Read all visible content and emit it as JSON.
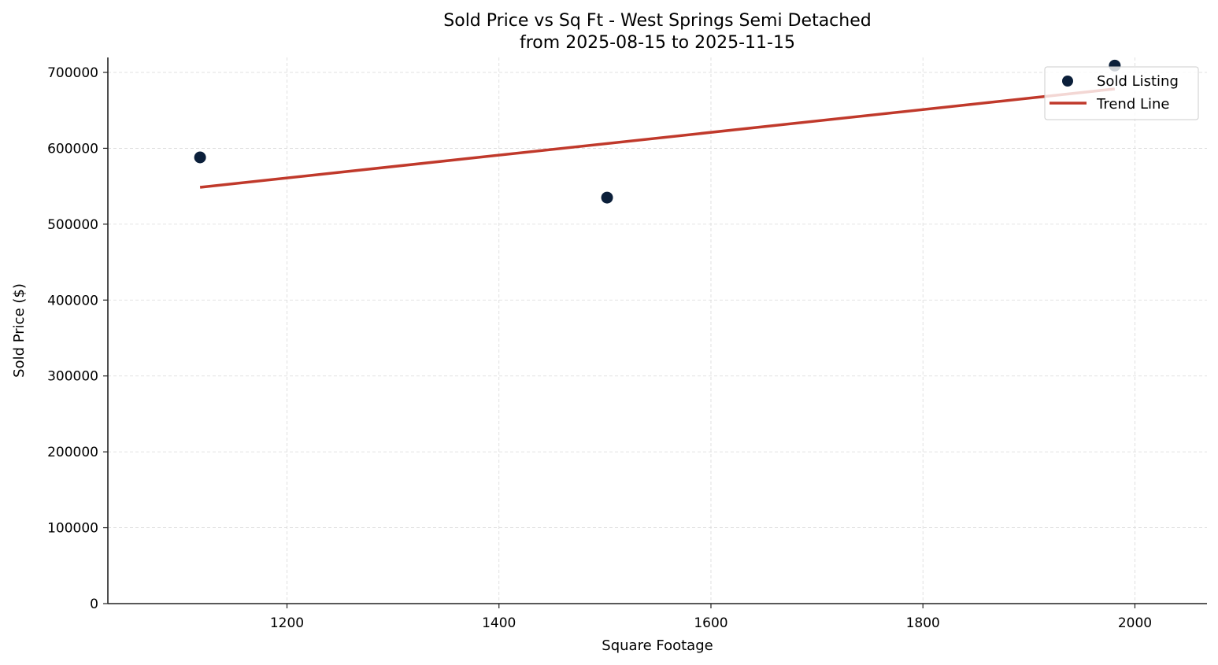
{
  "chart_data": {
    "type": "scatter",
    "title": "Sold Price vs Sq Ft - West Springs Semi Detached",
    "subtitle": "from 2025-08-15 to 2025-11-15",
    "xlabel": "Square Footage",
    "ylabel": "Sold Price ($)",
    "xlim": [
      1031,
      2068
    ],
    "ylim": [
      0,
      719700
    ],
    "xticks": [
      1200,
      1400,
      1600,
      1800,
      2000
    ],
    "yticks": [
      0,
      100000,
      200000,
      300000,
      400000,
      500000,
      600000,
      700000
    ],
    "grid": true,
    "legend_position": "upper right",
    "series": [
      {
        "name": "Sold Listing",
        "type": "scatter",
        "color": "#0b1f3a",
        "points": [
          {
            "x": 1118,
            "y": 588000
          },
          {
            "x": 1502,
            "y": 535000
          },
          {
            "x": 1981,
            "y": 709000
          }
        ]
      },
      {
        "name": "Trend Line",
        "type": "line",
        "color": "#c0392b",
        "points": [
          {
            "x": 1118,
            "y": 548600
          },
          {
            "x": 1981,
            "y": 678200
          }
        ]
      }
    ]
  },
  "legend": {
    "items": [
      {
        "label": "Sold Listing"
      },
      {
        "label": "Trend Line"
      }
    ]
  }
}
